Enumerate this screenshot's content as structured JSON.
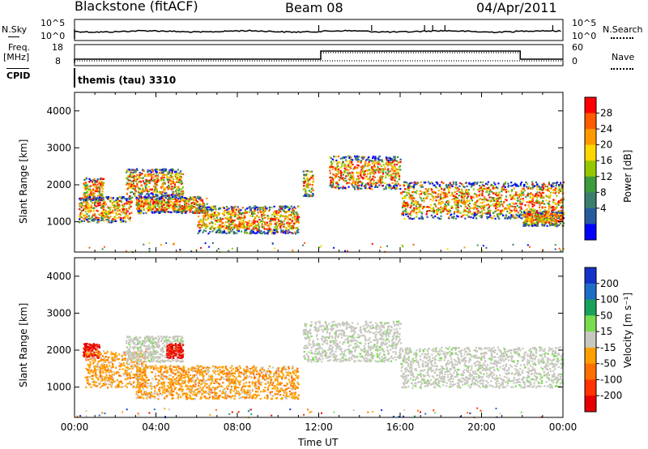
{
  "header": {
    "station": "Blackstone (fitACF)",
    "beam": "Beam 08",
    "date": "04/Apr/2011"
  },
  "strips": {
    "nsky_label": "N.Sky",
    "nsearch_label": "N.Search",
    "freq_label": "Freq.",
    "freq_unit": "[MHz]",
    "nave_label": "Nave",
    "cpid_label": "CPID",
    "cpid_value": "themis (tau) 3310",
    "noise_ticks_left": [
      "10^5",
      "10^0"
    ],
    "noise_ticks_right": [
      "10^5",
      "10^0"
    ],
    "freq_ticks": [
      "18",
      "8"
    ],
    "nave_ticks": [
      "60",
      "0"
    ]
  },
  "colorbars": {
    "power": {
      "label": "Power [dB]",
      "ticks": [
        "28",
        "24",
        "20",
        "16",
        "12",
        "8",
        "4"
      ],
      "colors": [
        "#ff0000",
        "#ff5a00",
        "#ff9b00",
        "#ffd700",
        "#96c800",
        "#3c9b3c",
        "#3c7d6e",
        "#285aa0",
        "#0000ff"
      ]
    },
    "velocity": {
      "label": "Velocity [m s⁻¹]",
      "ticks": [
        "200",
        "100",
        "50",
        "15",
        "-15",
        "-50",
        "-100",
        "-200"
      ],
      "colors": [
        "#1432c8",
        "#1e6ec8",
        "#19a05a",
        "#78dc50",
        "#c8c8c0",
        "#ffa000",
        "#ff6e00",
        "#ff3200",
        "#e60000"
      ]
    }
  },
  "chart_data": [
    {
      "type": "heatmap",
      "title": "Power",
      "ylabel": "Slant Range [km]",
      "xlabel": "",
      "xlim": [
        "00:00",
        "24:00"
      ],
      "ylim": [
        180,
        4500
      ],
      "yticks": [
        1000,
        2000,
        3000,
        4000
      ],
      "xticks": [
        "00:00",
        "04:00",
        "08:00",
        "12:00",
        "16:00",
        "20:00",
        "00:00"
      ],
      "clim": [
        0,
        32
      ],
      "scatter_bands": [
        {
          "t0": 0.4,
          "t1": 1.4,
          "r_lo": 1600,
          "r_hi": 2200
        },
        {
          "t0": 0.2,
          "t1": 2.8,
          "r_lo": 1000,
          "r_hi": 1700
        },
        {
          "t0": 2.5,
          "t1": 5.3,
          "r_lo": 1700,
          "r_hi": 2450
        },
        {
          "t0": 3.0,
          "t1": 6.5,
          "r_lo": 1250,
          "r_hi": 1700
        },
        {
          "t0": 6.0,
          "t1": 11.0,
          "r_lo": 700,
          "r_hi": 1450
        },
        {
          "t0": 11.2,
          "t1": 11.7,
          "r_lo": 1700,
          "r_hi": 2400
        },
        {
          "t0": 12.5,
          "t1": 16.0,
          "r_lo": 1900,
          "r_hi": 2800
        },
        {
          "t0": 16.0,
          "t1": 24.0,
          "r_lo": 1100,
          "r_hi": 2100
        },
        {
          "t0": 22.0,
          "t1": 24.0,
          "r_lo": 900,
          "r_hi": 1300
        }
      ],
      "dominant_levels": [
        20,
        24,
        16,
        28
      ]
    },
    {
      "type": "heatmap",
      "title": "Velocity",
      "ylabel": "Slant Range [km]",
      "xlabel": "Time UT",
      "xlim": [
        "00:00",
        "24:00"
      ],
      "ylim": [
        180,
        4500
      ],
      "yticks": [
        1000,
        2000,
        3000,
        4000
      ],
      "xticks": [
        "00:00",
        "04:00",
        "08:00",
        "12:00",
        "16:00",
        "20:00",
        "00:00"
      ],
      "clim": [
        -250,
        250
      ],
      "scatter_bands": [
        {
          "t0": 0.4,
          "t1": 1.2,
          "r_lo": 1800,
          "r_hi": 2200,
          "velocity": -200
        },
        {
          "t0": 0.5,
          "t1": 3.5,
          "r_lo": 1000,
          "r_hi": 2000,
          "velocity": -50
        },
        {
          "t0": 2.5,
          "t1": 5.3,
          "r_lo": 1700,
          "r_hi": 2400,
          "velocity": 0
        },
        {
          "t0": 4.5,
          "t1": 5.3,
          "r_lo": 1800,
          "r_hi": 2200,
          "velocity": -200
        },
        {
          "t0": 3.0,
          "t1": 11.0,
          "r_lo": 700,
          "r_hi": 1600,
          "velocity": -50
        },
        {
          "t0": 11.2,
          "t1": 16.0,
          "r_lo": 1700,
          "r_hi": 2800,
          "velocity": 0
        },
        {
          "t0": 16.0,
          "t1": 24.0,
          "r_lo": 1000,
          "r_hi": 2100,
          "velocity": 0
        }
      ]
    }
  ]
}
